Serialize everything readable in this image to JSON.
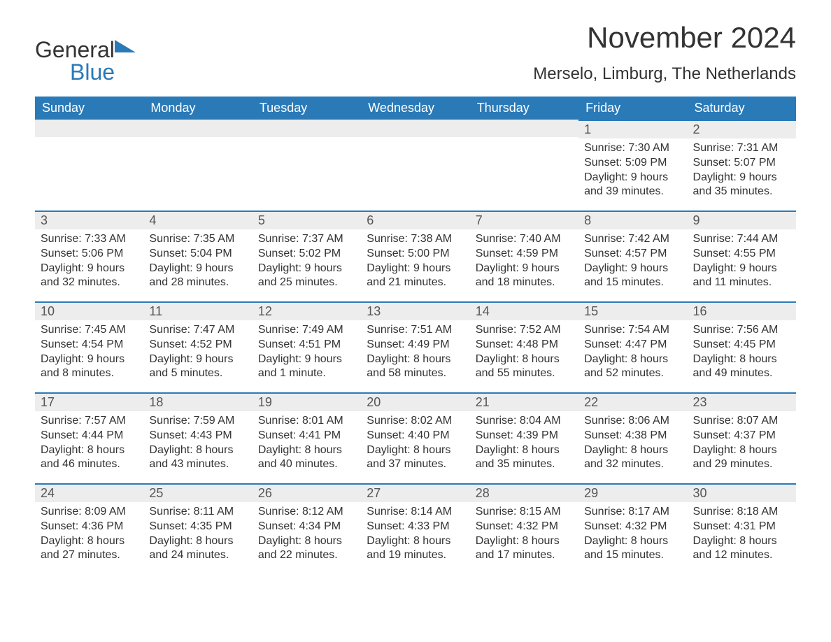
{
  "logo": {
    "text1": "General",
    "text2": "Blue",
    "color1": "#333333",
    "color2": "#2a7ab8"
  },
  "title": "November 2024",
  "location": "Merselo, Limburg, The Netherlands",
  "colors": {
    "header_bg": "#2a7ab8",
    "header_text": "#ffffff",
    "daynum_bg": "#ededed",
    "daynum_border": "#2a7ab8",
    "body_text": "#333333",
    "page_bg": "#ffffff"
  },
  "weekdays": [
    "Sunday",
    "Monday",
    "Tuesday",
    "Wednesday",
    "Thursday",
    "Friday",
    "Saturday"
  ],
  "first_weekday_index": 5,
  "days": [
    {
      "n": 1,
      "sunrise": "7:30 AM",
      "sunset": "5:09 PM",
      "daylight": "9 hours and 39 minutes."
    },
    {
      "n": 2,
      "sunrise": "7:31 AM",
      "sunset": "5:07 PM",
      "daylight": "9 hours and 35 minutes."
    },
    {
      "n": 3,
      "sunrise": "7:33 AM",
      "sunset": "5:06 PM",
      "daylight": "9 hours and 32 minutes."
    },
    {
      "n": 4,
      "sunrise": "7:35 AM",
      "sunset": "5:04 PM",
      "daylight": "9 hours and 28 minutes."
    },
    {
      "n": 5,
      "sunrise": "7:37 AM",
      "sunset": "5:02 PM",
      "daylight": "9 hours and 25 minutes."
    },
    {
      "n": 6,
      "sunrise": "7:38 AM",
      "sunset": "5:00 PM",
      "daylight": "9 hours and 21 minutes."
    },
    {
      "n": 7,
      "sunrise": "7:40 AM",
      "sunset": "4:59 PM",
      "daylight": "9 hours and 18 minutes."
    },
    {
      "n": 8,
      "sunrise": "7:42 AM",
      "sunset": "4:57 PM",
      "daylight": "9 hours and 15 minutes."
    },
    {
      "n": 9,
      "sunrise": "7:44 AM",
      "sunset": "4:55 PM",
      "daylight": "9 hours and 11 minutes."
    },
    {
      "n": 10,
      "sunrise": "7:45 AM",
      "sunset": "4:54 PM",
      "daylight": "9 hours and 8 minutes."
    },
    {
      "n": 11,
      "sunrise": "7:47 AM",
      "sunset": "4:52 PM",
      "daylight": "9 hours and 5 minutes."
    },
    {
      "n": 12,
      "sunrise": "7:49 AM",
      "sunset": "4:51 PM",
      "daylight": "9 hours and 1 minute."
    },
    {
      "n": 13,
      "sunrise": "7:51 AM",
      "sunset": "4:49 PM",
      "daylight": "8 hours and 58 minutes."
    },
    {
      "n": 14,
      "sunrise": "7:52 AM",
      "sunset": "4:48 PM",
      "daylight": "8 hours and 55 minutes."
    },
    {
      "n": 15,
      "sunrise": "7:54 AM",
      "sunset": "4:47 PM",
      "daylight": "8 hours and 52 minutes."
    },
    {
      "n": 16,
      "sunrise": "7:56 AM",
      "sunset": "4:45 PM",
      "daylight": "8 hours and 49 minutes."
    },
    {
      "n": 17,
      "sunrise": "7:57 AM",
      "sunset": "4:44 PM",
      "daylight": "8 hours and 46 minutes."
    },
    {
      "n": 18,
      "sunrise": "7:59 AM",
      "sunset": "4:43 PM",
      "daylight": "8 hours and 43 minutes."
    },
    {
      "n": 19,
      "sunrise": "8:01 AM",
      "sunset": "4:41 PM",
      "daylight": "8 hours and 40 minutes."
    },
    {
      "n": 20,
      "sunrise": "8:02 AM",
      "sunset": "4:40 PM",
      "daylight": "8 hours and 37 minutes."
    },
    {
      "n": 21,
      "sunrise": "8:04 AM",
      "sunset": "4:39 PM",
      "daylight": "8 hours and 35 minutes."
    },
    {
      "n": 22,
      "sunrise": "8:06 AM",
      "sunset": "4:38 PM",
      "daylight": "8 hours and 32 minutes."
    },
    {
      "n": 23,
      "sunrise": "8:07 AM",
      "sunset": "4:37 PM",
      "daylight": "8 hours and 29 minutes."
    },
    {
      "n": 24,
      "sunrise": "8:09 AM",
      "sunset": "4:36 PM",
      "daylight": "8 hours and 27 minutes."
    },
    {
      "n": 25,
      "sunrise": "8:11 AM",
      "sunset": "4:35 PM",
      "daylight": "8 hours and 24 minutes."
    },
    {
      "n": 26,
      "sunrise": "8:12 AM",
      "sunset": "4:34 PM",
      "daylight": "8 hours and 22 minutes."
    },
    {
      "n": 27,
      "sunrise": "8:14 AM",
      "sunset": "4:33 PM",
      "daylight": "8 hours and 19 minutes."
    },
    {
      "n": 28,
      "sunrise": "8:15 AM",
      "sunset": "4:32 PM",
      "daylight": "8 hours and 17 minutes."
    },
    {
      "n": 29,
      "sunrise": "8:17 AM",
      "sunset": "4:32 PM",
      "daylight": "8 hours and 15 minutes."
    },
    {
      "n": 30,
      "sunrise": "8:18 AM",
      "sunset": "4:31 PM",
      "daylight": "8 hours and 12 minutes."
    }
  ],
  "labels": {
    "sunrise": "Sunrise:",
    "sunset": "Sunset:",
    "daylight": "Daylight:"
  }
}
